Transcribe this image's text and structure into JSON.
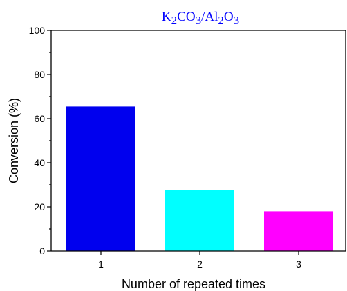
{
  "chart_data": {
    "type": "bar",
    "title_parts": [
      {
        "text": "K",
        "sub": false
      },
      {
        "text": "2",
        "sub": true
      },
      {
        "text": "CO",
        "sub": false
      },
      {
        "text": "3",
        "sub": true
      },
      {
        "text": "/Al",
        "sub": false
      },
      {
        "text": "2",
        "sub": true
      },
      {
        "text": "O",
        "sub": false
      },
      {
        "text": "3",
        "sub": true
      }
    ],
    "title_color": "#0000ff",
    "xlabel": "Number of repeated times",
    "ylabel": "Conversion (%)",
    "categories": [
      "1",
      "2",
      "3"
    ],
    "values": [
      65.5,
      27.5,
      18
    ],
    "colors": [
      "#0000ee",
      "#00ffff",
      "#ff00ff"
    ],
    "ylim": [
      0,
      100
    ],
    "yticks": [
      "0",
      "20",
      "40",
      "60",
      "80",
      "100"
    ],
    "grid": false,
    "legend": "none"
  }
}
